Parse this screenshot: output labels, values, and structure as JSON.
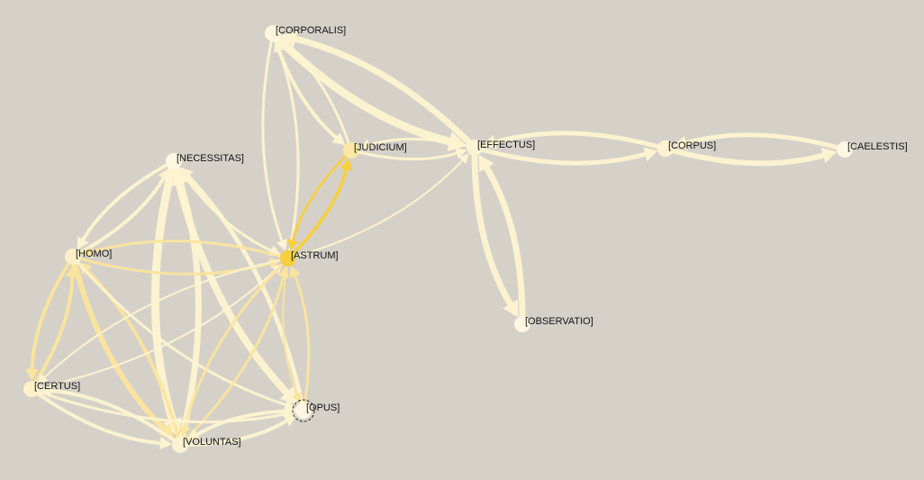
{
  "graph": {
    "nodes": [
      {
        "id": "corporalis",
        "label": "[CORPORALIS]",
        "color": "#fdf6dc"
      },
      {
        "id": "judicium",
        "label": "[JUDICIUM]",
        "color": "#fbe7a4"
      },
      {
        "id": "effectus",
        "label": "[EFFECTUS]",
        "color": "#fdf3d2"
      },
      {
        "id": "corpus",
        "label": "[CORPUS]",
        "color": "#fdf3d2"
      },
      {
        "id": "caelestis",
        "label": "[CAELESTIS]",
        "color": "#fdf6e2"
      },
      {
        "id": "necessitas",
        "label": "[NECESSITAS]",
        "color": "#fdf6e2"
      },
      {
        "id": "homo",
        "label": "[HOMO]",
        "color": "#fdf0c8"
      },
      {
        "id": "astrum",
        "label": "[ASTRUM]",
        "color": "#f7cf3f"
      },
      {
        "id": "observatio",
        "label": "[OBSERVATIO]",
        "color": "#fdf6e2"
      },
      {
        "id": "certus",
        "label": "[CERTUS]",
        "color": "#fdf0c8"
      },
      {
        "id": "opus",
        "label": "[OPUS]",
        "color": "#fdf6e2",
        "selected": true
      },
      {
        "id": "voluntas",
        "label": "[VOLUNTAS]",
        "color": "#fdf3d2"
      }
    ],
    "edges": [
      {
        "from": "corporalis",
        "to": "effectus",
        "weight": 9,
        "color": "#fdf3d0"
      },
      {
        "from": "effectus",
        "to": "corporalis",
        "weight": 7,
        "color": "#fdf3d0"
      },
      {
        "from": "corporalis",
        "to": "judicium",
        "weight": 4,
        "color": "#fdf3d0"
      },
      {
        "from": "judicium",
        "to": "corporalis",
        "weight": 3,
        "color": "#fdf3d0"
      },
      {
        "from": "astrum",
        "to": "corporalis",
        "weight": 3,
        "color": "#fdf3d0"
      },
      {
        "from": "corporalis",
        "to": "astrum",
        "weight": 3,
        "color": "#fdf3d0"
      },
      {
        "from": "judicium",
        "to": "effectus",
        "weight": 3,
        "color": "#fdf3d0"
      },
      {
        "from": "effectus",
        "to": "judicium",
        "weight": 3,
        "color": "#fdf3d0"
      },
      {
        "from": "astrum",
        "to": "judicium",
        "weight": 4,
        "color": "#f7cf3f"
      },
      {
        "from": "judicium",
        "to": "astrum",
        "weight": 3,
        "color": "#f7cf3f"
      },
      {
        "from": "effectus",
        "to": "corpus",
        "weight": 5,
        "color": "#fdf3d0"
      },
      {
        "from": "corpus",
        "to": "effectus",
        "weight": 5,
        "color": "#fdf3d0"
      },
      {
        "from": "corpus",
        "to": "caelestis",
        "weight": 6,
        "color": "#fdf3d0"
      },
      {
        "from": "caelestis",
        "to": "corpus",
        "weight": 5,
        "color": "#fdf3d0"
      },
      {
        "from": "effectus",
        "to": "observatio",
        "weight": 7,
        "color": "#fdf3d0"
      },
      {
        "from": "observatio",
        "to": "effectus",
        "weight": 7,
        "color": "#fdf3d0"
      },
      {
        "from": "astrum",
        "to": "effectus",
        "weight": 2,
        "color": "#fdf3d0"
      },
      {
        "from": "homo",
        "to": "necessitas",
        "weight": 4,
        "color": "#fdf3d0"
      },
      {
        "from": "necessitas",
        "to": "homo",
        "weight": 4,
        "color": "#fdf3d0"
      },
      {
        "from": "necessitas",
        "to": "astrum",
        "weight": 3,
        "color": "#fdf3d0"
      },
      {
        "from": "necessitas",
        "to": "voluntas",
        "weight": 9,
        "color": "#fdf3d0"
      },
      {
        "from": "voluntas",
        "to": "necessitas",
        "weight": 7,
        "color": "#fdf3d0"
      },
      {
        "from": "necessitas",
        "to": "opus",
        "weight": 8,
        "color": "#fdf3d0"
      },
      {
        "from": "opus",
        "to": "necessitas",
        "weight": 5,
        "color": "#fdf3d0"
      },
      {
        "from": "homo",
        "to": "astrum",
        "weight": 3,
        "color": "#fbe49c"
      },
      {
        "from": "astrum",
        "to": "homo",
        "weight": 3,
        "color": "#fbe49c"
      },
      {
        "from": "homo",
        "to": "certus",
        "weight": 4,
        "color": "#fbe49c"
      },
      {
        "from": "certus",
        "to": "homo",
        "weight": 4,
        "color": "#fbe49c"
      },
      {
        "from": "homo",
        "to": "voluntas",
        "weight": 6,
        "color": "#fbe49c"
      },
      {
        "from": "voluntas",
        "to": "homo",
        "weight": 4,
        "color": "#fbe49c"
      },
      {
        "from": "homo",
        "to": "opus",
        "weight": 3,
        "color": "#fdf3d0"
      },
      {
        "from": "astrum",
        "to": "certus",
        "weight": 2,
        "color": "#fdf3d0"
      },
      {
        "from": "certus",
        "to": "astrum",
        "weight": 2,
        "color": "#fdf3d0"
      },
      {
        "from": "astrum",
        "to": "voluntas",
        "weight": 3,
        "color": "#fbe49c"
      },
      {
        "from": "voluntas",
        "to": "astrum",
        "weight": 3,
        "color": "#fbe49c"
      },
      {
        "from": "astrum",
        "to": "opus",
        "weight": 2,
        "color": "#fbe49c"
      },
      {
        "from": "opus",
        "to": "astrum",
        "weight": 3,
        "color": "#fbe49c"
      },
      {
        "from": "certus",
        "to": "voluntas",
        "weight": 4,
        "color": "#fdf3d0"
      },
      {
        "from": "voluntas",
        "to": "certus",
        "weight": 4,
        "color": "#fdf3d0"
      },
      {
        "from": "certus",
        "to": "opus",
        "weight": 3,
        "color": "#fdf3d0"
      },
      {
        "from": "voluntas",
        "to": "opus",
        "weight": 4,
        "color": "#fdf3d0"
      },
      {
        "from": "opus",
        "to": "voluntas",
        "weight": 4,
        "color": "#fdf3d0"
      }
    ]
  },
  "colors": {
    "background": "#d5d1c9",
    "highlight": "#f7cf3f",
    "selection_ring": "#222222"
  }
}
